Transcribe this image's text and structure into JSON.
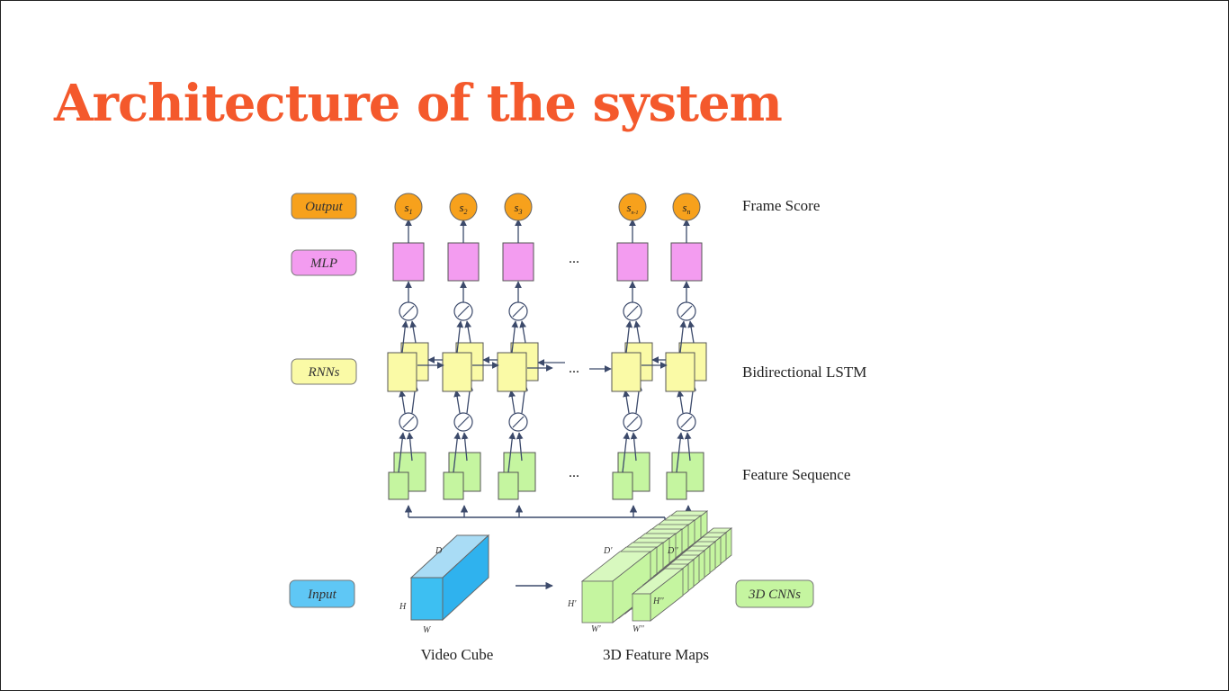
{
  "slide": {
    "title": "Architecture of the system"
  },
  "legend": {
    "output": "Output",
    "mlp": "MLP",
    "rnns": "RNNs",
    "input": "Input",
    "cnns": "3D CNNs"
  },
  "side_labels": {
    "frame_score": "Frame Score",
    "bilstm": "Bidirectional LSTM",
    "feature_sequence": "Feature Sequence"
  },
  "scores": [
    {
      "base": "s",
      "sub": "1"
    },
    {
      "base": "s",
      "sub": "2"
    },
    {
      "base": "s",
      "sub": "3"
    },
    {
      "base": "s",
      "sub": "n-1"
    },
    {
      "base": "s",
      "sub": "n"
    }
  ],
  "ellipsis": "...",
  "cube": {
    "caption": "Video Cube",
    "d": "D",
    "h": "H",
    "w": "W"
  },
  "maps": {
    "caption": "3D Feature Maps",
    "d1": "D'",
    "h1": "H'",
    "w1": "W'",
    "d2": "D''",
    "h2": "H''",
    "w2": "W''"
  },
  "colors": {
    "title": "#f4592c",
    "output": "#f7a11c",
    "mlp": "#f39cf0",
    "rnn": "#fafaa6",
    "feature": "#c5f5a0",
    "input": "#5fc7f5",
    "line": "#3c4a6b"
  }
}
